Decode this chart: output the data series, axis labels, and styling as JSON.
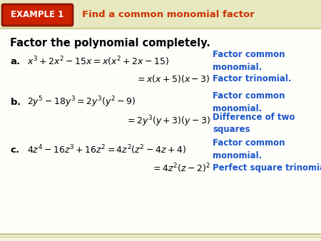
{
  "bg_color": "#fafae8",
  "header_bg_color": "#e8e8c0",
  "example_box_color": "#cc2200",
  "example_box_border": "#8b1500",
  "example_text": "EXAMPLE 1",
  "example_text_color": "#ffffff",
  "header_title": "Find a common monomial factor",
  "header_title_color": "#cc3300",
  "main_title": "Factor the polynomial completely.",
  "main_title_color": "#000000",
  "white_bg": "#ffffff",
  "blue_color": "#1a55cc",
  "math_color": "#000000",
  "stripe_color": "#f0f0d8",
  "header_line_color": "#d0d090",
  "bottom_line_color": "#d0c890"
}
